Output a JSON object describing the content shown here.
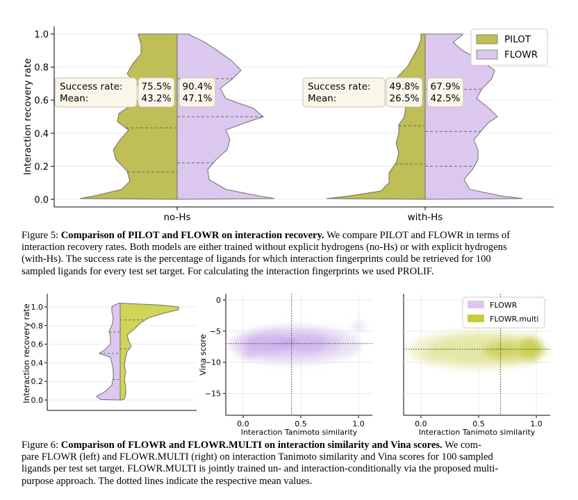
{
  "colors": {
    "pilot": "#bfbe57",
    "flowr": "#dcc8ef",
    "flowr_multi": "#c8cc3a",
    "violin_edge": "#6e6e6e",
    "box_fill": "#fbf6ea",
    "box_edge": "#c9c3b4",
    "grid": "#e8e8e8"
  },
  "figure5": {
    "chart_data": {
      "type": "violin",
      "ylabel": "Interaction recovery rate",
      "ylim": [
        0.0,
        1.0
      ],
      "yticks": [
        "0.0",
        "0.2",
        "0.4",
        "0.6",
        "0.8",
        "1.0"
      ],
      "categories": [
        "no-Hs",
        "with-Hs"
      ],
      "legend": {
        "placement": "top-right",
        "entries": [
          "PILOT",
          "FLOWR"
        ]
      },
      "groups": [
        {
          "name": "no-Hs",
          "label_left": "Success rate:\nMean:",
          "pilot": {
            "success_rate": "75.5%",
            "mean": "43.2%",
            "quartiles": [
              0.165,
              0.432,
              1.0
            ]
          },
          "flowr": {
            "success_rate": "90.4%",
            "mean": "47.1%",
            "quartiles": [
              0.22,
              0.5,
              0.73
            ]
          }
        },
        {
          "name": "with-Hs",
          "pilot": {
            "success_rate": "49.8%",
            "mean": "26.5%",
            "quartiles": [
              0.213,
              0.445,
              1.0
            ]
          },
          "flowr": {
            "success_rate": "67.9%",
            "mean": "42.5%",
            "quartiles": [
              0.2,
              0.41,
              0.665
            ]
          }
        }
      ],
      "box_labels": {
        "success": "Success rate:",
        "mean": "Mean:"
      }
    },
    "caption": {
      "label": "Figure 5:",
      "bold_title": "Comparison of PILOT and FLOWR on interaction recovery.",
      "lines": [
        "We compare PILOT and FLOWR in terms of",
        "interaction recovery rates. Both models are either trained without explicit hydrogens (no-Hs) or with explicit hydrogens",
        "(with-Hs). The success rate is the percentage of ligands for which interaction fingerprints could be retrieved for 100",
        "sampled ligands for every test set target. For calculating the interaction fingerprints we used PROLIF."
      ]
    }
  },
  "figure6": {
    "chart_data": [
      {
        "type": "violin",
        "ylabel": "Interaction recovery rate",
        "ylim": [
          0.0,
          1.0
        ],
        "yticks": [
          "0.0",
          "0.2",
          "0.4",
          "0.6",
          "0.8",
          "1.0"
        ],
        "left_series": "FLOWR",
        "right_series": "FLOWR.multi",
        "flowr_quartiles": [
          0.22,
          0.5,
          0.73
        ],
        "multi_quartiles": [
          0.55,
          0.86,
          1.0
        ]
      },
      {
        "type": "contour",
        "xlabel": "Interaction Tanimoto similarity",
        "ylabel": "Vina score",
        "xticks": [
          "0.0",
          "0.5",
          "1.0"
        ],
        "yticks": [
          "0",
          "−5",
          "−10",
          "−15"
        ],
        "xlim": [
          -0.15,
          1.12
        ],
        "ylim": [
          -18.5,
          1
        ],
        "series": "FLOWR",
        "mean_x": 0.42,
        "mean_y": -7.0
      },
      {
        "type": "contour",
        "xlabel": "Interaction Tanimoto similarity",
        "xticks": [
          "0.0",
          "0.5",
          "1.0"
        ],
        "xlim": [
          -0.15,
          1.12
        ],
        "ylim": [
          -18.5,
          1
        ],
        "series": "FLOWR.multi",
        "mean_x": 0.69,
        "mean_y": -7.9,
        "legend": {
          "placement": "top-right",
          "entries": [
            "FLOWR",
            "FLOWR.multi"
          ]
        }
      }
    ],
    "caption": {
      "label": "Figure 6:",
      "bold_title": "Comparison of FLOWR and FLOWR.MULTI on interaction similarity and Vina scores.",
      "lines": [
        "We com-",
        "pare FLOWR (left) and FLOWR.MULTI (right) on interaction Tanimoto similarity and Vina scores for 100 sampled",
        "ligands per test set target. FLOWR.MULTI is jointly trained un- and interaction-conditionally via the proposed multi-",
        "purpose approach. The dotted lines indicate the respective mean values."
      ]
    }
  }
}
